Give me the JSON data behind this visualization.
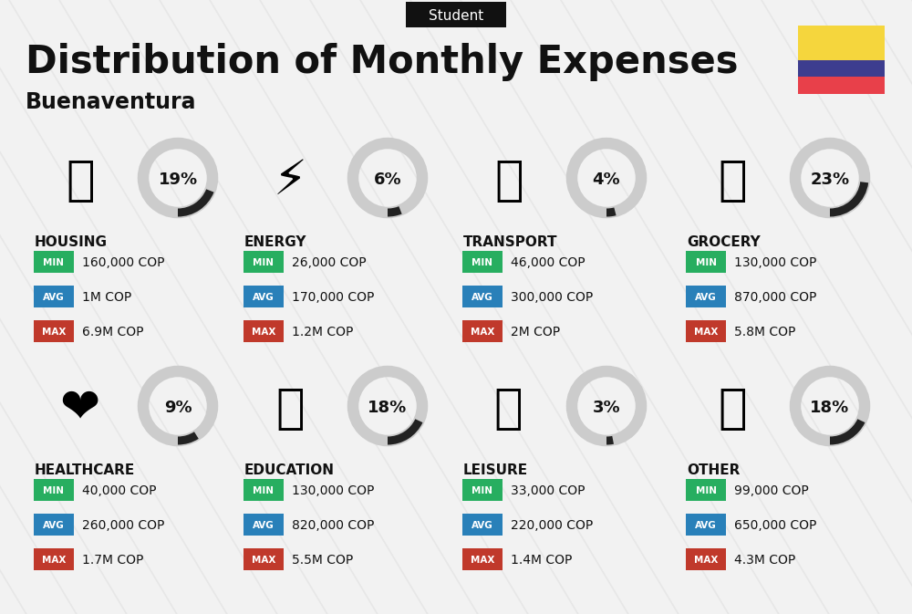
{
  "title": "Distribution of Monthly Expenses",
  "subtitle": "Buenaventura",
  "tag": "Student",
  "bg_color": "#f2f2f2",
  "categories": [
    {
      "name": "HOUSING",
      "percent": 19,
      "min": "160,000 COP",
      "avg": "1M COP",
      "max": "6.9M COP",
      "col": 0,
      "row": 0
    },
    {
      "name": "ENERGY",
      "percent": 6,
      "min": "26,000 COP",
      "avg": "170,000 COP",
      "max": "1.2M COP",
      "col": 1,
      "row": 0
    },
    {
      "name": "TRANSPORT",
      "percent": 4,
      "min": "46,000 COP",
      "avg": "300,000 COP",
      "max": "2M COP",
      "col": 2,
      "row": 0
    },
    {
      "name": "GROCERY",
      "percent": 23,
      "min": "130,000 COP",
      "avg": "870,000 COP",
      "max": "5.8M COP",
      "col": 3,
      "row": 0
    },
    {
      "name": "HEALTHCARE",
      "percent": 9,
      "min": "40,000 COP",
      "avg": "260,000 COP",
      "max": "1.7M COP",
      "col": 0,
      "row": 1
    },
    {
      "name": "EDUCATION",
      "percent": 18,
      "min": "130,000 COP",
      "avg": "820,000 COP",
      "max": "5.5M COP",
      "col": 1,
      "row": 1
    },
    {
      "name": "LEISURE",
      "percent": 3,
      "min": "33,000 COP",
      "avg": "220,000 COP",
      "max": "1.4M COP",
      "col": 2,
      "row": 1
    },
    {
      "name": "OTHER",
      "percent": 18,
      "min": "99,000 COP",
      "avg": "650,000 COP",
      "max": "4.3M COP",
      "col": 3,
      "row": 1
    }
  ],
  "color_min": "#27ae60",
  "color_avg": "#2980b9",
  "color_max": "#c0392b",
  "color_circle_filled": "#222222",
  "color_circle_empty": "#cccccc",
  "flag_colors": [
    "#F5D63D",
    "#3D3D8F",
    "#E8404A"
  ],
  "flag_proportions": [
    0.5,
    0.25,
    0.25
  ],
  "stripe_color": "#e0e0e0",
  "stripe_alpha": 0.6
}
